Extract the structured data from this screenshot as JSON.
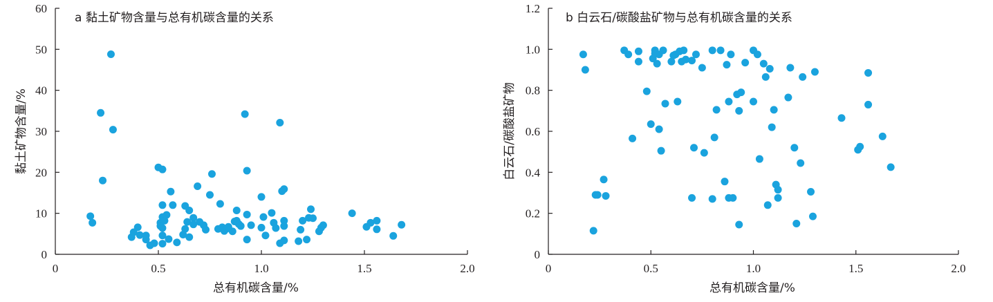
{
  "colors": {
    "marker": "#1aa3de",
    "axis": "#231f20"
  },
  "chart_data": [
    {
      "type": "scatter",
      "title": "a 黏土矿物含量与总有机碳含量的关系",
      "xlabel": "总有机碳含量/%",
      "ylabel": "黏土矿物含量/%",
      "xlim": [
        0,
        2.0
      ],
      "ylim": [
        0,
        60
      ],
      "xticks": [
        "0",
        "0.5",
        "1.0",
        "1.5",
        "2.0"
      ],
      "yticks": [
        "0",
        "10",
        "20",
        "30",
        "40",
        "50",
        "60"
      ],
      "xtick_values": [
        0,
        0.5,
        1.0,
        1.5,
        2.0
      ],
      "ytick_values": [
        0,
        10,
        20,
        30,
        40,
        50,
        60
      ],
      "series": [
        {
          "points": [
            [
              0.17,
              9.3
            ],
            [
              0.18,
              7.7
            ],
            [
              0.22,
              34.5
            ],
            [
              0.23,
              18.0
            ],
            [
              0.27,
              48.8
            ],
            [
              0.28,
              30.4
            ],
            [
              0.37,
              4.2
            ],
            [
              0.38,
              5.4
            ],
            [
              0.4,
              6.6
            ],
            [
              0.41,
              4.7
            ],
            [
              0.44,
              4.6
            ],
            [
              0.44,
              3.6
            ],
            [
              0.46,
              2.2
            ],
            [
              0.48,
              2.7
            ],
            [
              0.5,
              21.2
            ],
            [
              0.51,
              7.7
            ],
            [
              0.51,
              6.9
            ],
            [
              0.52,
              20.7
            ],
            [
              0.52,
              12.0
            ],
            [
              0.52,
              9.1
            ],
            [
              0.53,
              8.2
            ],
            [
              0.52,
              6.4
            ],
            [
              0.52,
              4.6
            ],
            [
              0.52,
              2.6
            ],
            [
              0.54,
              9.6
            ],
            [
              0.55,
              3.7
            ],
            [
              0.56,
              15.3
            ],
            [
              0.57,
              12.0
            ],
            [
              0.59,
              2.9
            ],
            [
              0.62,
              4.8
            ],
            [
              0.63,
              11.8
            ],
            [
              0.63,
              6.2
            ],
            [
              0.64,
              7.9
            ],
            [
              0.65,
              10.7
            ],
            [
              0.65,
              4.2
            ],
            [
              0.67,
              8.9
            ],
            [
              0.67,
              7.3
            ],
            [
              0.69,
              16.6
            ],
            [
              0.7,
              7.9
            ],
            [
              0.72,
              7.1
            ],
            [
              0.73,
              6.0
            ],
            [
              0.75,
              14.5
            ],
            [
              0.76,
              19.6
            ],
            [
              0.79,
              6.2
            ],
            [
              0.8,
              12.3
            ],
            [
              0.81,
              6.6
            ],
            [
              0.82,
              5.7
            ],
            [
              0.83,
              6.2
            ],
            [
              0.84,
              6.7
            ],
            [
              0.86,
              5.6
            ],
            [
              0.87,
              8.0
            ],
            [
              0.88,
              10.7
            ],
            [
              0.88,
              8.2
            ],
            [
              0.89,
              7.4
            ],
            [
              0.9,
              6.9
            ],
            [
              0.92,
              34.2
            ],
            [
              0.93,
              20.4
            ],
            [
              0.93,
              9.7
            ],
            [
              0.93,
              3.6
            ],
            [
              0.95,
              7.1
            ],
            [
              1.0,
              14.0
            ],
            [
              1.0,
              6.5
            ],
            [
              1.01,
              9.1
            ],
            [
              1.02,
              4.6
            ],
            [
              1.05,
              10.1
            ],
            [
              1.06,
              7.7
            ],
            [
              1.07,
              6.4
            ],
            [
              1.09,
              32.1
            ],
            [
              1.09,
              2.7
            ],
            [
              1.1,
              15.4
            ],
            [
              1.11,
              15.9
            ],
            [
              1.11,
              8.2
            ],
            [
              1.11,
              6.9
            ],
            [
              1.11,
              3.4
            ],
            [
              1.18,
              3.2
            ],
            [
              1.19,
              6.0
            ],
            [
              1.2,
              8.2
            ],
            [
              1.22,
              3.6
            ],
            [
              1.23,
              8.9
            ],
            [
              1.24,
              11.0
            ],
            [
              1.25,
              8.8
            ],
            [
              1.28,
              5.6
            ],
            [
              1.29,
              6.5
            ],
            [
              1.3,
              7.1
            ],
            [
              1.44,
              10.0
            ],
            [
              1.51,
              6.7
            ],
            [
              1.53,
              7.7
            ],
            [
              1.56,
              8.2
            ],
            [
              1.56,
              6.1
            ],
            [
              1.64,
              4.5
            ],
            [
              1.68,
              7.2
            ]
          ]
        }
      ]
    },
    {
      "type": "scatter",
      "title": "b 白云石/碳酸盐矿物与总有机碳含量的关系",
      "xlabel": "总有机碳含量/%",
      "ylabel": "白云石/碳酸盐矿物",
      "xlim": [
        0,
        2.0
      ],
      "ylim": [
        0,
        1.2
      ],
      "xticks": [
        "0",
        "0.5",
        "1.0",
        "1.5",
        "2.0"
      ],
      "yticks": [
        "0",
        "0.2",
        "0.4",
        "0.6",
        "0.8",
        "1.0",
        "1.2"
      ],
      "xtick_values": [
        0,
        0.5,
        1.0,
        1.5,
        2.0
      ],
      "ytick_values": [
        0,
        0.2,
        0.4,
        0.6,
        0.8,
        1.0,
        1.2
      ],
      "series": [
        {
          "points": [
            [
              0.17,
              0.975
            ],
            [
              0.18,
              0.9
            ],
            [
              0.22,
              0.115
            ],
            [
              0.23,
              0.29
            ],
            [
              0.27,
              0.365
            ],
            [
              0.28,
              0.285
            ],
            [
              0.37,
              0.995
            ],
            [
              0.39,
              0.975
            ],
            [
              0.41,
              0.565
            ],
            [
              0.44,
              0.99
            ],
            [
              0.44,
              0.94
            ],
            [
              0.48,
              0.795
            ],
            [
              0.5,
              0.635
            ],
            [
              0.51,
              0.955
            ],
            [
              0.52,
              0.995
            ],
            [
              0.52,
              0.98
            ],
            [
              0.53,
              0.93
            ],
            [
              0.54,
              0.975
            ],
            [
              0.54,
              0.61
            ],
            [
              0.55,
              0.505
            ],
            [
              0.56,
              0.995
            ],
            [
              0.57,
              0.735
            ],
            [
              0.6,
              0.94
            ],
            [
              0.61,
              0.97
            ],
            [
              0.62,
              0.975
            ],
            [
              0.63,
              0.745
            ],
            [
              0.64,
              0.99
            ],
            [
              0.65,
              0.94
            ],
            [
              0.66,
              0.995
            ],
            [
              0.67,
              0.95
            ],
            [
              0.7,
              0.945
            ],
            [
              0.7,
              0.275
            ],
            [
              0.71,
              0.52
            ],
            [
              0.72,
              0.975
            ],
            [
              0.75,
              0.91
            ],
            [
              0.76,
              0.495
            ],
            [
              0.8,
              0.995
            ],
            [
              0.8,
              0.27
            ],
            [
              0.81,
              0.57
            ],
            [
              0.82,
              0.705
            ],
            [
              0.84,
              0.995
            ],
            [
              0.86,
              0.355
            ],
            [
              0.87,
              0.925
            ],
            [
              0.88,
              0.745
            ],
            [
              0.88,
              0.275
            ],
            [
              0.89,
              0.975
            ],
            [
              0.9,
              0.275
            ],
            [
              0.92,
              0.78
            ],
            [
              0.93,
              0.7
            ],
            [
              0.93,
              0.145
            ],
            [
              0.94,
              0.79
            ],
            [
              0.96,
              0.935
            ],
            [
              1.0,
              0.995
            ],
            [
              1.0,
              0.745
            ],
            [
              1.02,
              0.975
            ],
            [
              1.03,
              0.465
            ],
            [
              1.05,
              0.93
            ],
            [
              1.06,
              0.865
            ],
            [
              1.07,
              0.24
            ],
            [
              1.08,
              0.905
            ],
            [
              1.09,
              0.62
            ],
            [
              1.1,
              0.705
            ],
            [
              1.11,
              0.34
            ],
            [
              1.12,
              0.315
            ],
            [
              1.12,
              0.275
            ],
            [
              1.17,
              0.765
            ],
            [
              1.18,
              0.91
            ],
            [
              1.2,
              0.52
            ],
            [
              1.21,
              0.15
            ],
            [
              1.23,
              0.445
            ],
            [
              1.24,
              0.865
            ],
            [
              1.28,
              0.305
            ],
            [
              1.29,
              0.185
            ],
            [
              1.3,
              0.89
            ],
            [
              1.43,
              0.665
            ],
            [
              1.51,
              0.51
            ],
            [
              1.52,
              0.525
            ],
            [
              1.56,
              0.885
            ],
            [
              1.56,
              0.73
            ],
            [
              1.63,
              0.575
            ],
            [
              1.67,
              0.425
            ],
            [
              0.24,
              0.29
            ]
          ]
        }
      ]
    }
  ]
}
